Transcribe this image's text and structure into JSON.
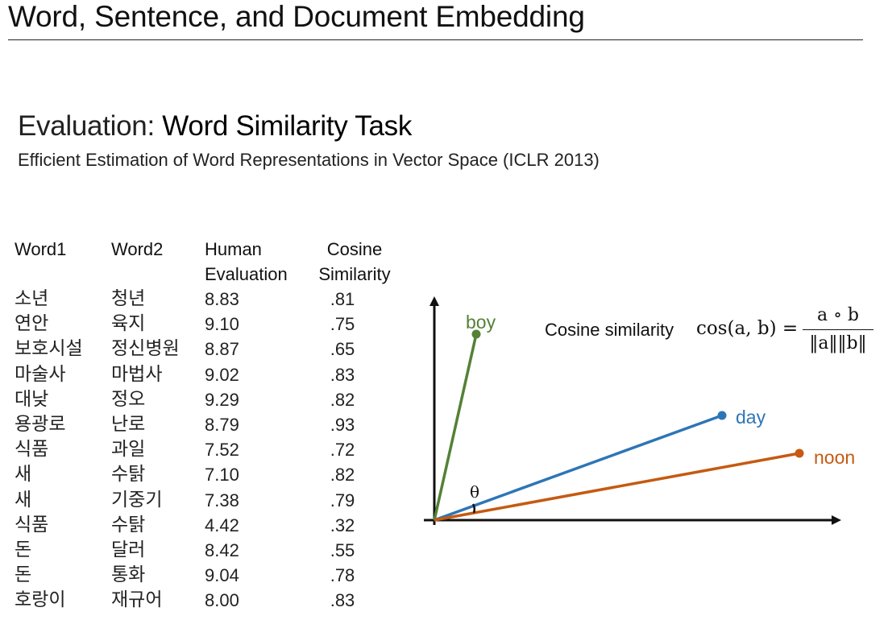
{
  "slide": {
    "title": "Word, Sentence, and Document Embedding"
  },
  "heading": {
    "prefix": "Evaluation: ",
    "emphasis": "Word Similarity Task"
  },
  "subheading": "Efficient Estimation of Word Representations in Vector Space (ICLR 2013)",
  "table": {
    "headers": [
      [
        "Word1"
      ],
      [
        "Word2"
      ],
      [
        "Human",
        "Evaluation"
      ],
      [
        "Cosine",
        "Similarity"
      ]
    ],
    "rows": [
      [
        "소년",
        "청년",
        "8.83",
        ".81"
      ],
      [
        "연안",
        "육지",
        "9.10",
        ".75"
      ],
      [
        "보호시설",
        "정신병원",
        "8.87",
        ".65"
      ],
      [
        "마술사",
        "마법사",
        "9.02",
        ".83"
      ],
      [
        "대낮",
        "정오",
        "9.29",
        ".82"
      ],
      [
        "용광로",
        "난로",
        "8.79",
        ".93"
      ],
      [
        "식품",
        "과일",
        "7.52",
        ".72"
      ],
      [
        "새",
        "수탉",
        "7.10",
        ".82"
      ],
      [
        "새",
        "기중기",
        "7.38",
        ".79"
      ],
      [
        "식품",
        "수탉",
        "4.42",
        ".32"
      ],
      [
        "돈",
        "달러",
        "8.42",
        ".55"
      ],
      [
        "돈",
        "통화",
        "9.04",
        ".78"
      ],
      [
        "호랑이",
        "재규어",
        "8.00",
        ".83"
      ]
    ]
  },
  "diagram": {
    "vectors": [
      {
        "label": "boy",
        "color": "#538135"
      },
      {
        "label": "day",
        "color": "#2E75B6"
      },
      {
        "label": "noon",
        "color": "#C55A11"
      }
    ],
    "angle_label": "θ",
    "axis_color": "#111111"
  },
  "formula": {
    "label": "Cosine similarity",
    "lhs": "cos(a, b) =",
    "numerator": "a ∘ b",
    "denominator": "‖a‖‖b‖"
  }
}
